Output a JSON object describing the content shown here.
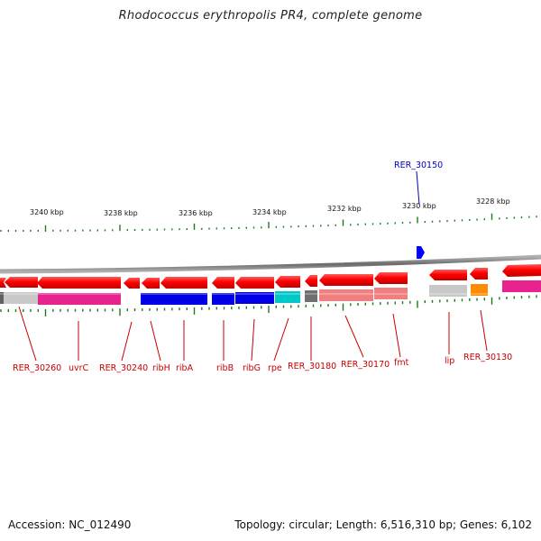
{
  "title": "Rhodococcus erythropolis PR4, complete genome",
  "footer": {
    "accession": "Accession: NC_012490",
    "summary": "Topology: circular; Length: 6,516,310 bp; Genes: 6,102"
  },
  "colors": {
    "backbone": "#8a8a8a",
    "tick": "#1c7a1c",
    "gene_arrow": "#ff0000",
    "label_red": "#c80000",
    "label_blue": "#0000c0",
    "highlight_gene": "#0000ff"
  },
  "coordinate_labels": [
    "3240 kbp",
    "3238 kbp",
    "3236 kbp",
    "3234 kbp",
    "3232 kbp",
    "3230 kbp",
    "3228 kbp"
  ],
  "gene_labels_bottom": [
    "RER_30260",
    "uvrC",
    "RER_30240",
    "ribH",
    "ribA",
    "ribB",
    "ribG",
    "rpe",
    "RER_30180",
    "RER_30170",
    "fmt",
    "lip",
    "RER_30130"
  ],
  "gene_label_top": "RER_30150",
  "category_bar_colors": [
    "#c8c8c8",
    "#e8238f",
    "#0000e6",
    "#0000e6",
    "#00c8c8",
    "#808080",
    "#f08080",
    "#c8c8c8",
    "#ff8c00",
    "#e8238f"
  ]
}
